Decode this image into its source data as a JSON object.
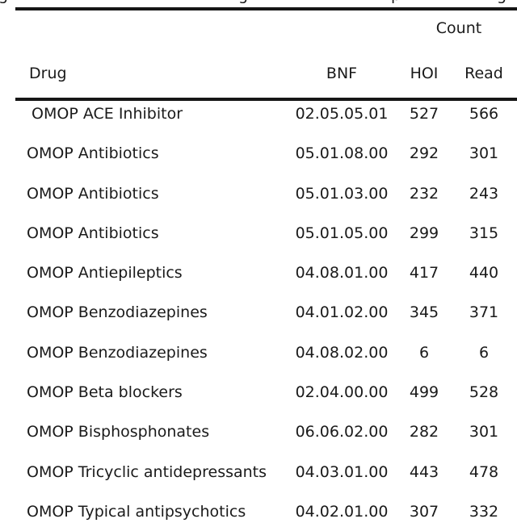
{
  "page": {
    "background_color": "#ffffff",
    "text_color": "#1a1a1a",
    "rule_color": "#161616"
  },
  "clipped_caption": {
    "fragments": [
      "g",
      "g",
      "p",
      "g"
    ]
  },
  "table": {
    "group_header": "Count",
    "columns": [
      "Drug",
      "BNF",
      "HOI",
      "Read"
    ],
    "rows": [
      {
        "drug": " OMOP ACE Inhibitor",
        "bnf": "02.05.05.01",
        "hoi": "527",
        "read": "566"
      },
      {
        "drug": "OMOP Antibiotics",
        "bnf": "05.01.08.00",
        "hoi": "292",
        "read": "301"
      },
      {
        "drug": "OMOP Antibiotics",
        "bnf": "05.01.03.00",
        "hoi": "232",
        "read": "243"
      },
      {
        "drug": "OMOP Antibiotics",
        "bnf": "05.01.05.00",
        "hoi": "299",
        "read": "315"
      },
      {
        "drug": "OMOP Antiepileptics",
        "bnf": "04.08.01.00",
        "hoi": "417",
        "read": "440"
      },
      {
        "drug": "OMOP Benzodiazepines",
        "bnf": "04.01.02.00",
        "hoi": "345",
        "read": "371"
      },
      {
        "drug": "OMOP Benzodiazepines",
        "bnf": "04.08.02.00",
        "hoi": "6",
        "read": "6"
      },
      {
        "drug": "OMOP Beta blockers",
        "bnf": "02.04.00.00",
        "hoi": "499",
        "read": "528"
      },
      {
        "drug": "OMOP Bisphosphonates",
        "bnf": "06.06.02.00",
        "hoi": "282",
        "read": "301"
      },
      {
        "drug": "OMOP Tricyclic antidepressants",
        "bnf": "04.03.01.00",
        "hoi": "443",
        "read": "478"
      },
      {
        "drug": "OMOP Typical antipsychotics",
        "bnf": "04.02.01.00",
        "hoi": "307",
        "read": "332"
      }
    ]
  }
}
